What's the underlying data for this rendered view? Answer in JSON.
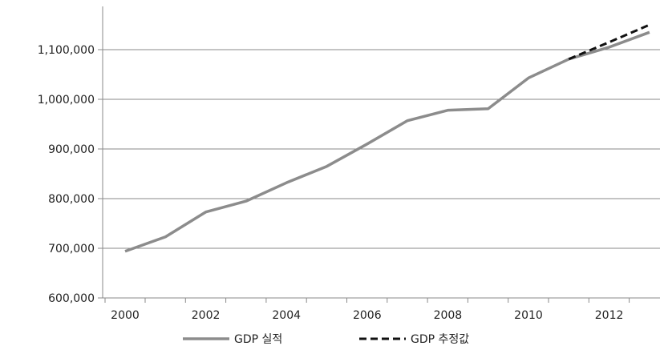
{
  "chart_data": {
    "type": "line",
    "title": "",
    "xlabel": "",
    "ylabel": "",
    "grid": "horizontal",
    "legend_position": "bottom",
    "xlim": [
      2000,
      2013
    ],
    "ylim": [
      600000,
      1200000
    ],
    "x_ticks": [
      "2000",
      "2002",
      "2004",
      "2006",
      "2008",
      "2010",
      "2012"
    ],
    "x_tick_values": [
      2000,
      2002,
      2004,
      2006,
      2008,
      2010,
      2012
    ],
    "y_ticks": [
      "600,000",
      "700,000",
      "800,000",
      "900,000",
      "1,000,000",
      "1,100,000"
    ],
    "y_tick_values": [
      600000,
      700000,
      800000,
      900000,
      1000000,
      1100000
    ],
    "series": [
      {
        "name": "GDP 실적",
        "color": "#8c8c8c",
        "style": "solid",
        "x": [
          2000,
          2001,
          2002,
          2003,
          2004,
          2005,
          2006,
          2007,
          2008,
          2009,
          2010,
          2011,
          2012,
          2013
        ],
        "y": [
          694000,
          723000,
          773000,
          795000,
          832000,
          865000,
          910000,
          957000,
          978000,
          981000,
          1043000,
          1081000,
          1105000,
          1135000
        ]
      },
      {
        "name": "GDP 추정값",
        "color": "#111111",
        "style": "dashed",
        "x": [
          2011,
          2012,
          2013
        ],
        "y": [
          1081000,
          1115000,
          1150000
        ]
      }
    ]
  }
}
